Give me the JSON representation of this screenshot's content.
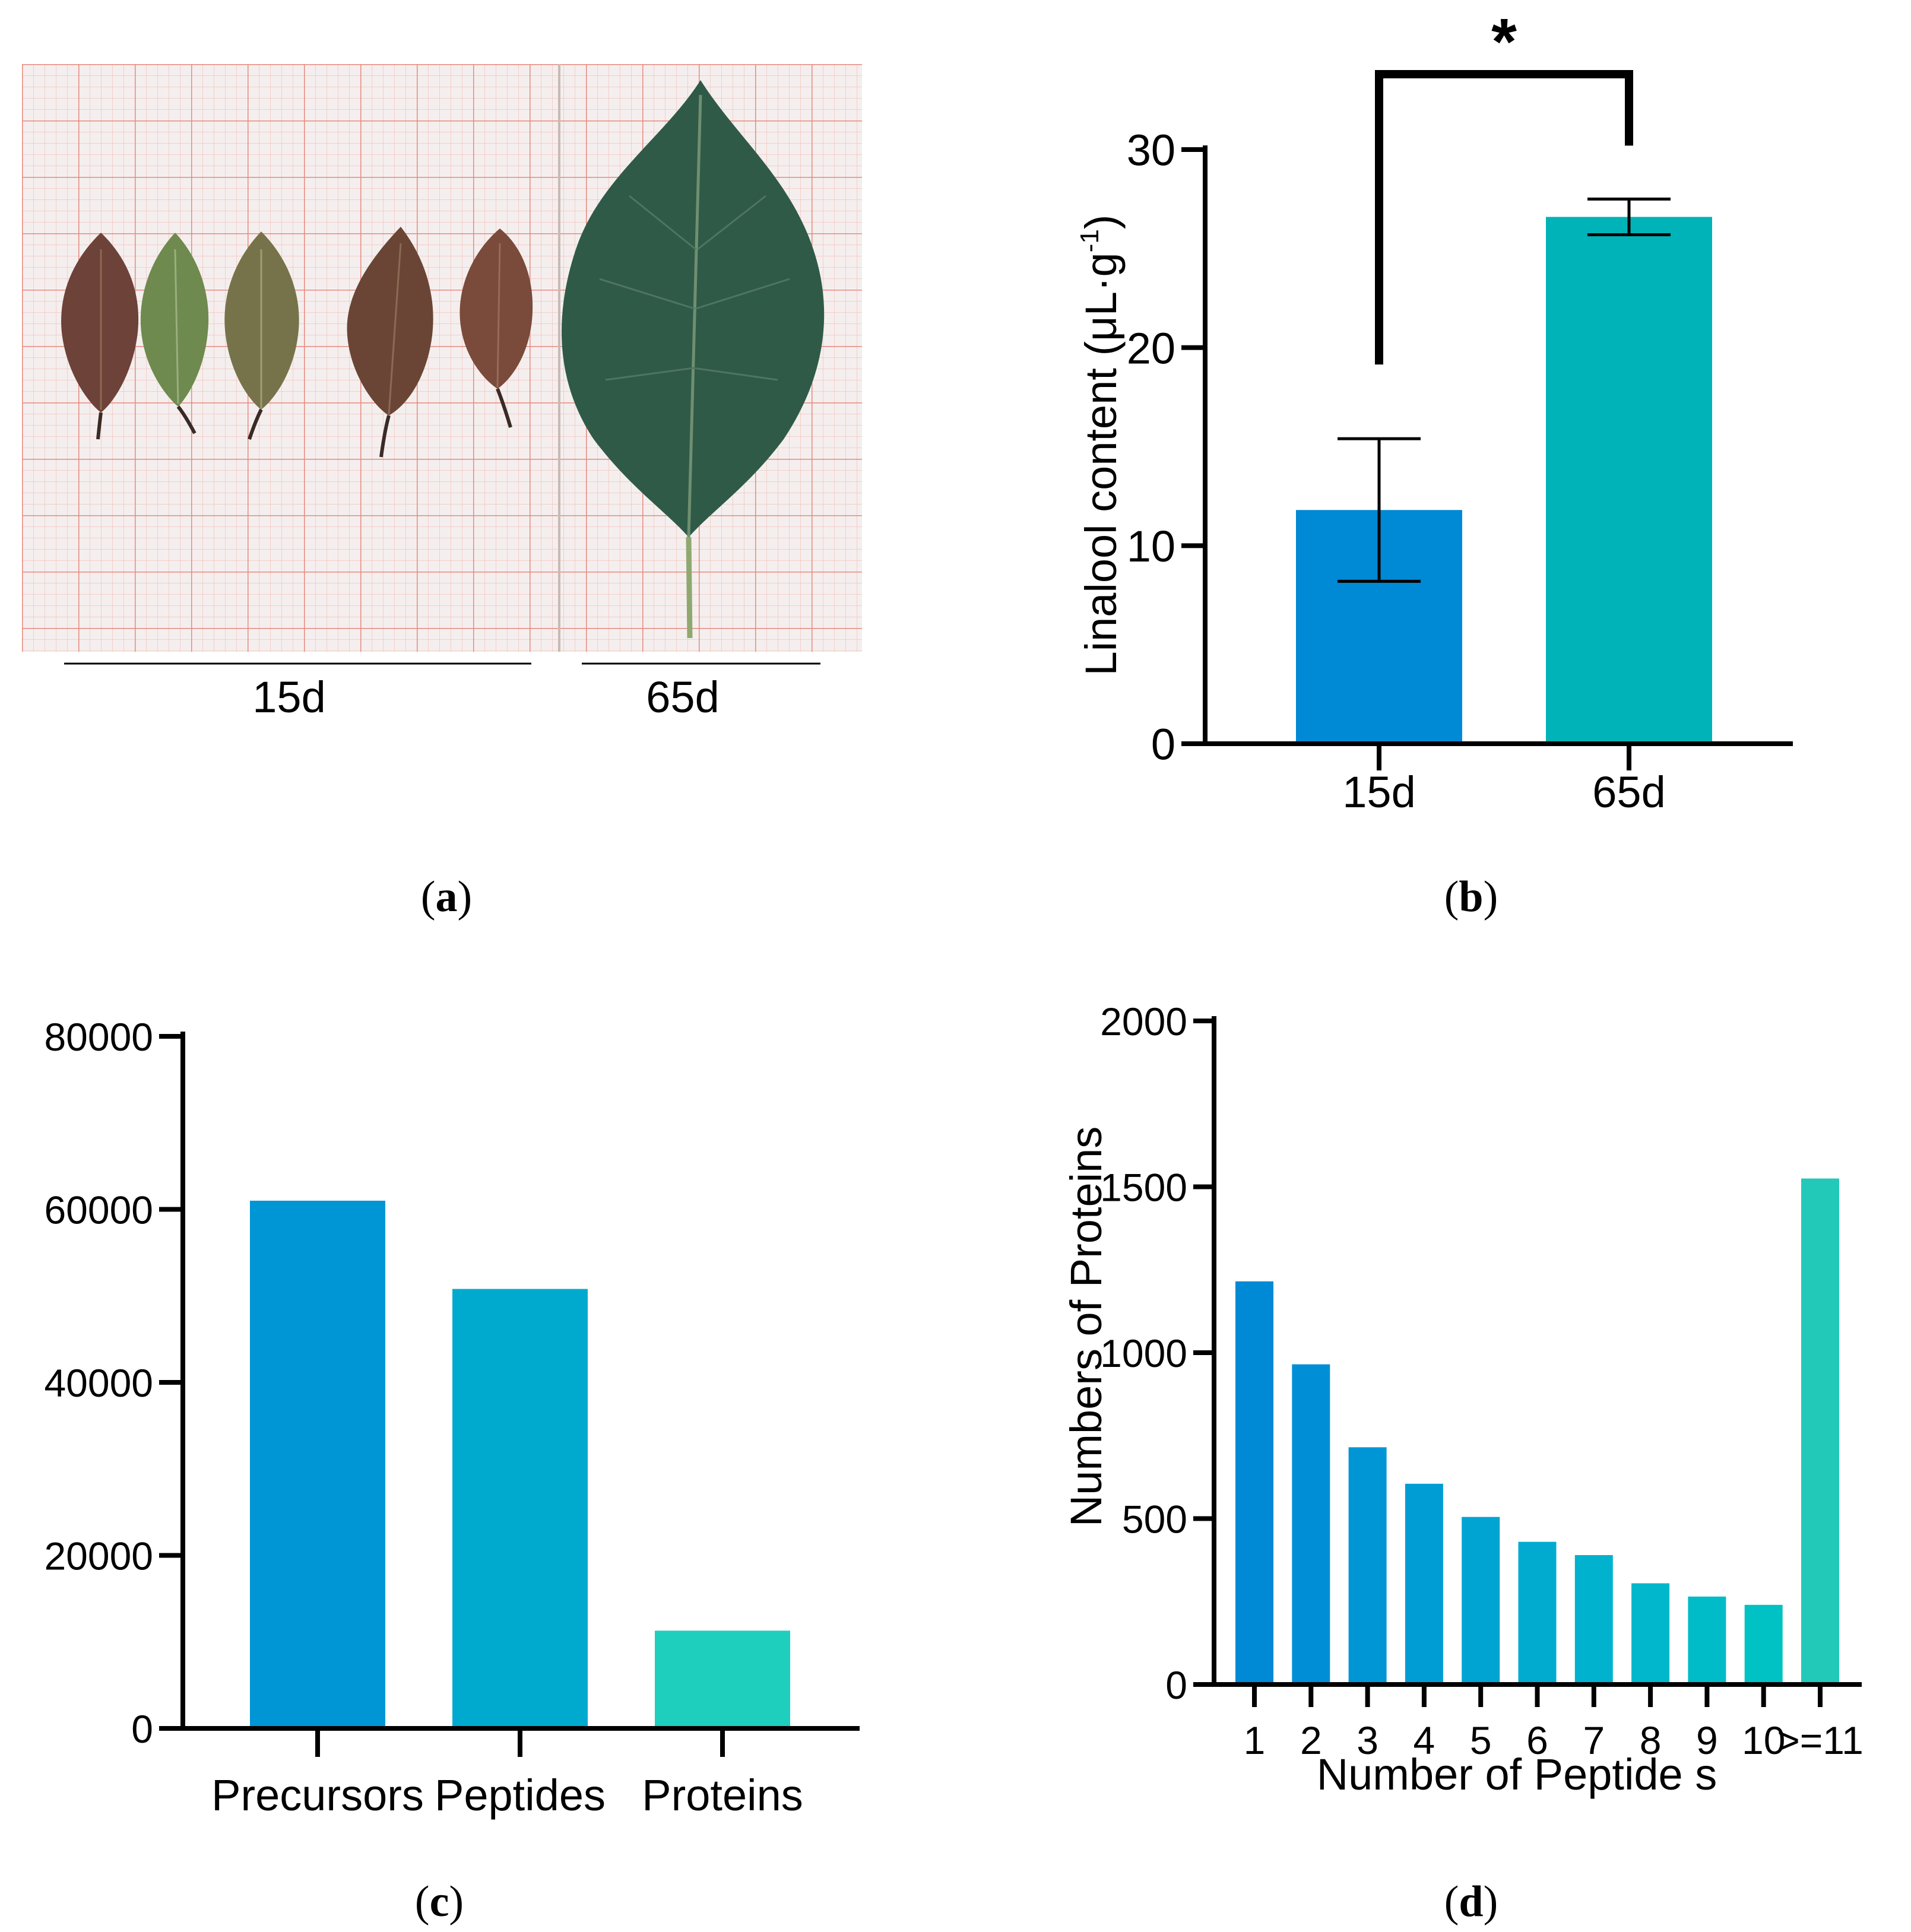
{
  "colors": {
    "grid_major": "#e6897f",
    "grid_minor": "#f2c4bd",
    "paper": "#f4efee",
    "leaf_young_red": "#6d4238",
    "leaf_young_green": "#6e8a4e",
    "leaf_mature": "#2f5a48",
    "bar_blue": "#0089d4",
    "bar_teal": "#00b3b8",
    "bar_cyan": "#00aacf",
    "bar_mint": "#1fcfbd"
  },
  "panel_a": {
    "label_open": "(",
    "label_letter": "a",
    "label_close": ")",
    "group_labels": [
      "15d",
      "65d"
    ]
  },
  "chart_data": [
    {
      "panel": "b",
      "type": "bar",
      "label_open": "(",
      "label_letter": "b",
      "label_close": ")",
      "title": "",
      "ylabel": "Linalool content (μL·g",
      "ylabel_sup": "-1",
      "ylabel_close": ")",
      "xlabel": "",
      "categories": [
        "15d",
        "65d"
      ],
      "values": [
        11.8,
        26.6
      ],
      "errors": [
        3.6,
        0.9
      ],
      "ylim": [
        0,
        30
      ],
      "yticks": [
        "0",
        "10",
        "20",
        "30"
      ],
      "significance": "*",
      "colors": [
        "#0089d4",
        "#00b3b8"
      ]
    },
    {
      "panel": "c",
      "type": "bar",
      "label_open": "(",
      "label_letter": "c",
      "label_close": ")",
      "title": "",
      "ylabel": "",
      "xlabel": "",
      "categories": [
        "Precursors",
        "Peptides",
        "Proteins"
      ],
      "values": [
        61000,
        50800,
        11300
      ],
      "ylim": [
        0,
        80000
      ],
      "yticks": [
        "0",
        "20000",
        "40000",
        "60000",
        "80000"
      ],
      "colors": [
        "#0096d6",
        "#00aacf",
        "#1fcfbd"
      ]
    },
    {
      "panel": "d",
      "type": "bar",
      "label_open": "(",
      "label_letter": "d",
      "label_close": ")",
      "title": "",
      "ylabel": "Numbers of Proteins",
      "xlabel": "Number of Peptide s",
      "categories": [
        "1",
        "2",
        "3",
        "4",
        "5",
        "6",
        "7",
        "8",
        "9",
        "10",
        ">=11"
      ],
      "values": [
        1215,
        965,
        715,
        605,
        505,
        430,
        390,
        305,
        265,
        240,
        1525
      ],
      "ylim": [
        0,
        2000
      ],
      "yticks": [
        "0",
        "500",
        "1000",
        "1500",
        "2000"
      ],
      "colors": [
        "#0089d4",
        "#008fd6",
        "#0096d6",
        "#009dd5",
        "#00a4d2",
        "#00abcf",
        "#00b2cd",
        "#00b7cb",
        "#00bbc8",
        "#00c1c4",
        "#22c9b9"
      ]
    }
  ]
}
